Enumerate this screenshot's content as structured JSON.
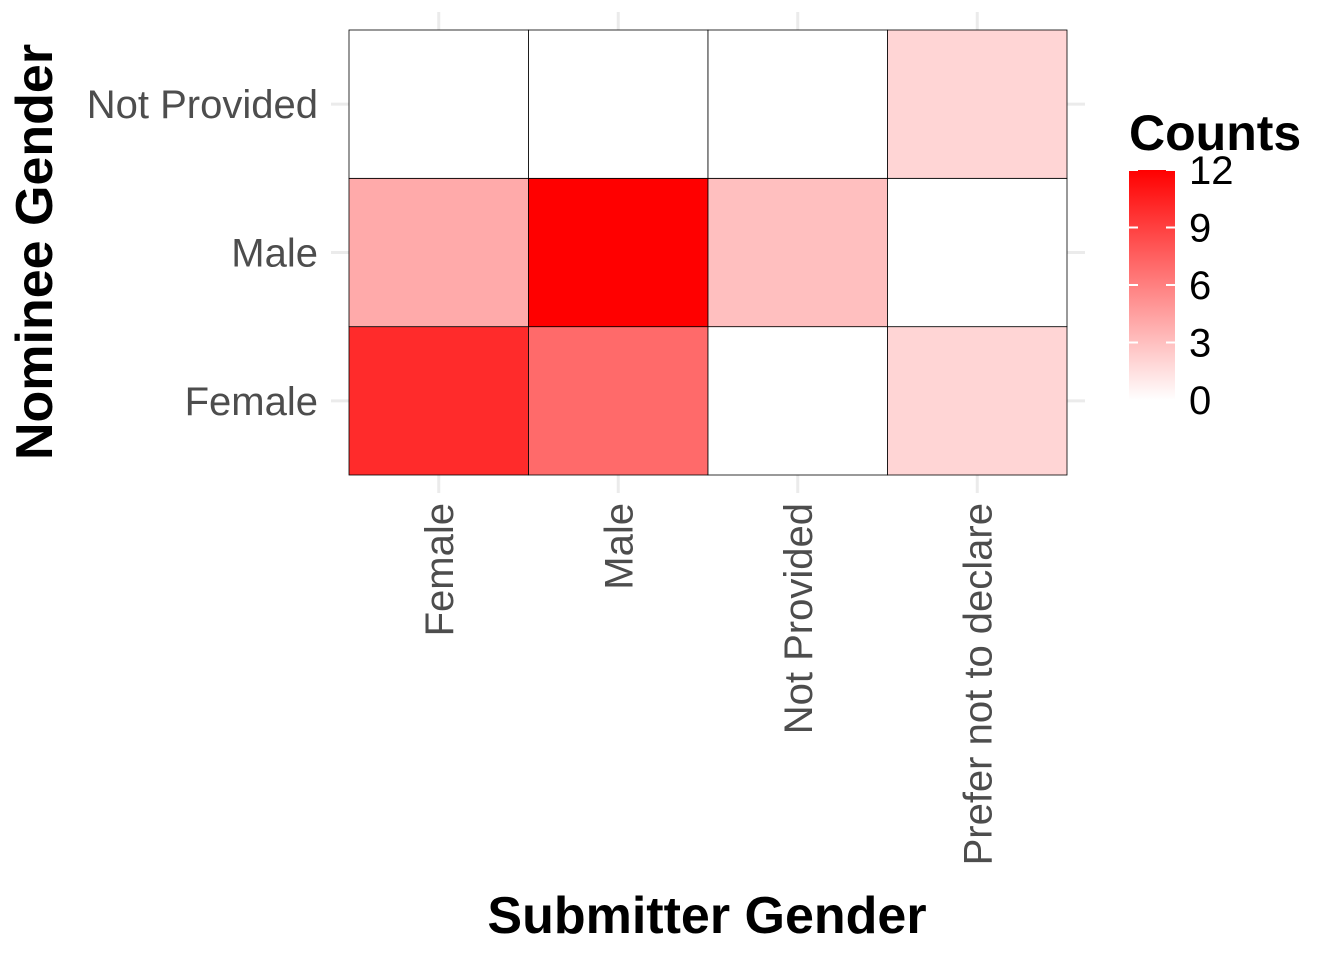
{
  "chart_data": {
    "type": "heatmap",
    "x_categories": [
      "Female",
      "Male",
      "Not Provided",
      "Prefer not to declare"
    ],
    "y_categories": [
      "Female",
      "Male",
      "Not Provided"
    ],
    "values": [
      [
        10,
        7,
        0,
        2
      ],
      [
        4,
        12,
        3,
        0
      ],
      [
        0,
        0,
        0,
        2
      ]
    ],
    "xlabel": "Submitter Gender",
    "ylabel": "Nominee Gender",
    "legend": {
      "title": "Counts",
      "ticks": [
        0,
        3,
        6,
        9,
        12
      ],
      "placement": "right"
    },
    "color_range": [
      0,
      12
    ],
    "color_low": "#ffffff",
    "color_high": "#ff0000",
    "grid": true
  }
}
